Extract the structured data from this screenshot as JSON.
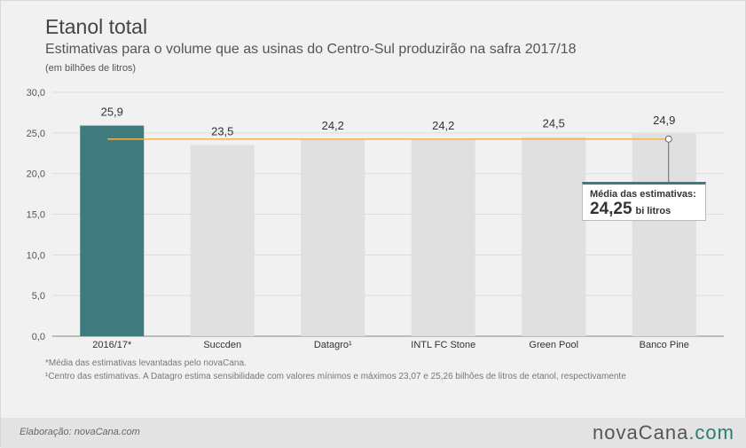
{
  "header": {
    "title": "Etanol total",
    "subtitle": "Estimativas para o volume que as usinas do Centro-Sul produzirão na safra 2017/18",
    "unit_note": "(em bilhões de litros)"
  },
  "chart_data": {
    "type": "bar",
    "categories": [
      "2016/17*",
      "Succden",
      "Datagro¹",
      "INTL FC Stone",
      "Green Pool",
      "Banco Pine"
    ],
    "values": [
      25.9,
      23.5,
      24.2,
      24.2,
      24.5,
      24.9
    ],
    "value_labels": [
      "25,9",
      "23,5",
      "24,2",
      "24,2",
      "24,5",
      "24,9"
    ],
    "ylim": [
      0,
      30
    ],
    "yticks": [
      "0,0",
      "5,0",
      "10,0",
      "15,0",
      "20,0",
      "25,0",
      "30,0"
    ],
    "average": 24.25,
    "highlight_color": "#3f7a7c",
    "bar_color": "#e0e0e0",
    "average_line_color": "#f0b35a"
  },
  "callout": {
    "label": "Média das estimativas:",
    "value": "24,25",
    "unit": "bi litros"
  },
  "notes": {
    "note1": "*Média das estimativas levantadas pelo novaCana.",
    "note2": "¹Centro das estimativas. A Datagro estima sensibilidade com valores mínimos e máximos 23,07 e 25,26 bilhões de litros de etanol, respectivamente"
  },
  "footer": {
    "credit": "Elaboração: novaCana.com",
    "brand_main": "novaCana",
    "brand_suffix": ".com"
  }
}
